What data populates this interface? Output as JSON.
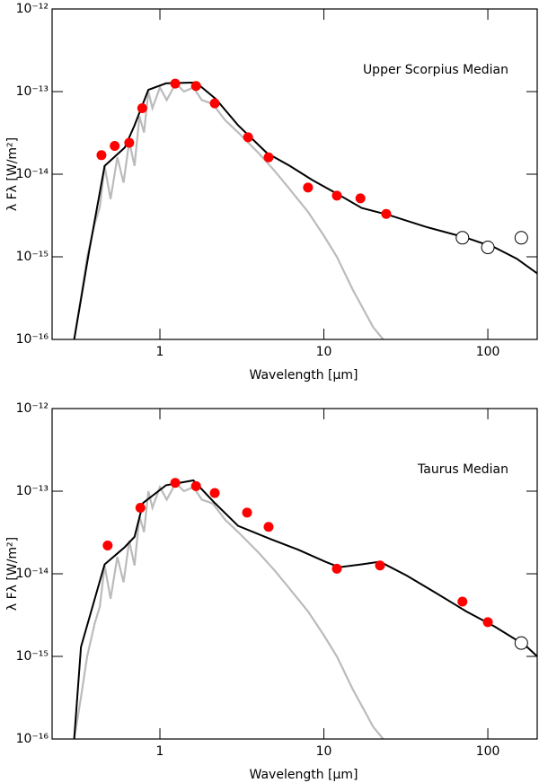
{
  "chart_data": [
    {
      "type": "line",
      "annotation": "Upper Scorpius Median",
      "xlabel": "Wavelength [μm]",
      "ylabel": "λ Fλ [W/m²]",
      "xscale": "log",
      "yscale": "log",
      "xlim": [
        0.22,
        200
      ],
      "ylim": [
        1e-16,
        1e-12
      ],
      "xticks": [
        1,
        10,
        100
      ],
      "yticks": [
        {
          "value": 1e-16,
          "label": "10⁻¹⁶"
        },
        {
          "value": 1e-15,
          "label": "10⁻¹⁵"
        },
        {
          "value": 1e-14,
          "label": "10⁻¹⁴"
        },
        {
          "value": 1e-13,
          "label": "10⁻¹³"
        },
        {
          "value": 1e-12,
          "label": "10⁻¹²"
        }
      ],
      "series": [
        {
          "style": "line",
          "color": "#bbbbbb",
          "x": [
            0.3,
            0.33,
            0.36,
            0.4,
            0.43,
            0.46,
            0.5,
            0.55,
            0.6,
            0.65,
            0.7,
            0.75,
            0.8,
            0.85,
            0.9,
            1.0,
            1.1,
            1.25,
            1.4,
            1.6,
            1.8,
            2.1,
            2.5,
            3.0,
            4,
            5,
            6,
            8,
            10,
            12,
            15,
            20,
            23
          ],
          "values": [
            1e-16,
            3.2e-16,
            1e-15,
            2.5e-15,
            4e-15,
            1.26e-14,
            5e-15,
            1.6e-14,
            7.9e-15,
            2.5e-14,
            1.26e-14,
            5e-14,
            3.2e-14,
            1e-13,
            6.3e-14,
            1.12e-13,
            7.9e-14,
            1.26e-13,
            1e-13,
            1.12e-13,
            7.9e-14,
            7.1e-14,
            4.5e-14,
            3.2e-14,
            1.8e-14,
            1.1e-14,
            7.1e-15,
            3.5e-15,
            1.8e-15,
            1e-15,
            4e-16,
            1.4e-16,
            1e-16
          ]
        },
        {
          "style": "line",
          "color": "#000000",
          "x": [
            0.3,
            0.37,
            0.46,
            0.61,
            0.7,
            0.85,
            1.09,
            1.66,
            2.2,
            3.0,
            4.5,
            6.2,
            8.5,
            12.4,
            17,
            25,
            42,
            74,
            110,
            150,
            200
          ],
          "values": [
            1e-16,
            1.17e-15,
            1.26e-14,
            2.1e-14,
            3.9e-14,
            1.05e-13,
            1.26e-13,
            1.29e-13,
            8.1e-14,
            3.9e-14,
            1.8e-14,
            1.26e-14,
            8.5e-15,
            5.6e-15,
            3.9e-15,
            3.2e-15,
            2.3e-15,
            1.7e-15,
            1.3e-15,
            9.5e-16,
            6.3e-16
          ]
        },
        {
          "style": "points",
          "color": "#ff0000",
          "x": [
            0.44,
            0.53,
            0.65,
            0.78,
            1.24,
            1.66,
            2.16,
            3.45,
            4.6,
            8.0,
            12,
            16.7,
            24
          ],
          "values": [
            1.7e-14,
            2.2e-14,
            2.4e-14,
            6.3e-14,
            1.25e-13,
            1.17e-13,
            7.2e-14,
            2.8e-14,
            1.6e-14,
            6.9e-15,
            5.5e-15,
            5.1e-15,
            3.3e-15
          ]
        },
        {
          "style": "open",
          "color": "#ffffff",
          "x": [
            70,
            100,
            160
          ],
          "values": [
            1.7e-15,
            1.3e-15,
            1.7e-15
          ]
        }
      ]
    },
    {
      "type": "line",
      "annotation": "Taurus Median",
      "xlabel": "Wavelength [μm]",
      "ylabel": "λ Fλ [W/m²]",
      "xscale": "log",
      "yscale": "log",
      "xlim": [
        0.22,
        200
      ],
      "ylim": [
        1e-16,
        1e-12
      ],
      "xticks": [
        1,
        10,
        100
      ],
      "yticks": [
        {
          "value": 1e-16,
          "label": "10⁻¹⁶"
        },
        {
          "value": 1e-15,
          "label": "10⁻¹⁵"
        },
        {
          "value": 1e-14,
          "label": "10⁻¹⁴"
        },
        {
          "value": 1e-13,
          "label": "10⁻¹³"
        },
        {
          "value": 1e-12,
          "label": "10⁻¹²"
        }
      ],
      "series": [
        {
          "style": "line",
          "color": "#bbbbbb",
          "x": [
            0.3,
            0.33,
            0.36,
            0.4,
            0.43,
            0.46,
            0.5,
            0.55,
            0.6,
            0.65,
            0.7,
            0.75,
            0.8,
            0.85,
            0.9,
            1.0,
            1.1,
            1.25,
            1.4,
            1.6,
            1.8,
            2.1,
            2.5,
            3.0,
            4,
            5,
            6,
            8,
            10,
            12,
            15,
            20,
            23
          ],
          "values": [
            1e-16,
            3.2e-16,
            1e-15,
            2.5e-15,
            4e-15,
            1.26e-14,
            5e-15,
            1.6e-14,
            7.9e-15,
            2.5e-14,
            1.26e-14,
            5e-14,
            3.2e-14,
            1e-13,
            6.3e-14,
            1.12e-13,
            7.9e-14,
            1.26e-13,
            1e-13,
            1.12e-13,
            7.9e-14,
            7.1e-14,
            4.5e-14,
            3.2e-14,
            1.8e-14,
            1.1e-14,
            7.1e-15,
            3.5e-15,
            1.8e-15,
            1e-15,
            4e-16,
            1.4e-16,
            1e-16
          ]
        },
        {
          "style": "line",
          "color": "#000000",
          "x": [
            0.3,
            0.33,
            0.46,
            0.61,
            0.7,
            0.79,
            1.09,
            1.6,
            2.16,
            3.0,
            4.8,
            7,
            10.2,
            12.4,
            17,
            22,
            32,
            48,
            74,
            110,
            170,
            200
          ],
          "values": [
            1e-16,
            1.3e-15,
            1.3e-14,
            2.1e-14,
            2.8e-14,
            7.2e-14,
            1.18e-13,
            1.35e-13,
            7.2e-14,
            3.8e-14,
            2.6e-14,
            1.95e-14,
            1.4e-14,
            1.2e-14,
            1.3e-14,
            1.4e-14,
            9.5e-15,
            5.9e-15,
            3.5e-15,
            2.3e-15,
            1.35e-15,
            1e-15
          ]
        },
        {
          "style": "points",
          "color": "#ff0000",
          "x": [
            0.48,
            0.76,
            1.24,
            1.66,
            2.16,
            3.4,
            4.6,
            12,
            22,
            70,
            100
          ],
          "values": [
            2.2e-14,
            6.3e-14,
            1.26e-13,
            1.15e-13,
            9.5e-14,
            5.5e-14,
            3.7e-14,
            1.15e-14,
            1.26e-14,
            4.6e-15,
            2.6e-15
          ]
        },
        {
          "style": "open",
          "color": "#ffffff",
          "x": [
            160
          ],
          "values": [
            1.45e-15
          ]
        }
      ]
    }
  ]
}
